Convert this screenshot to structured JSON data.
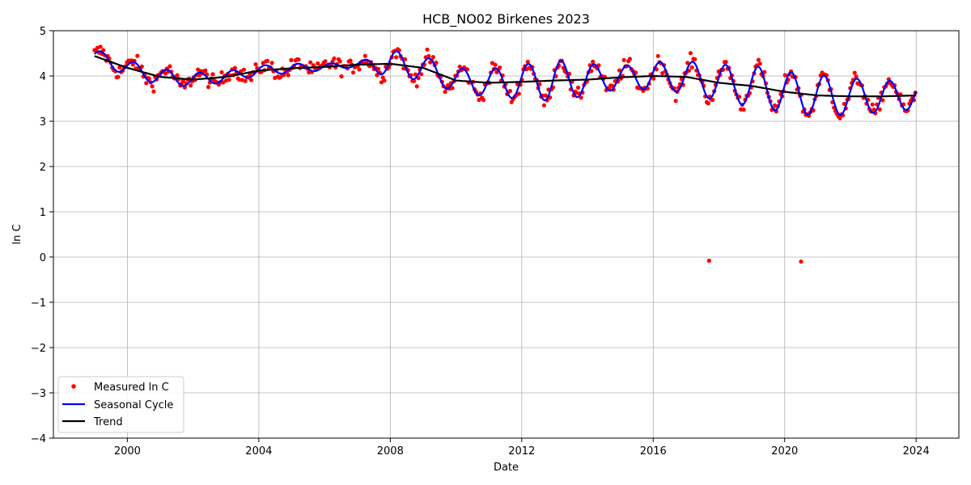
{
  "chart_data": {
    "type": "line",
    "title": "HCB_NO02 Birkenes 2023",
    "xlabel": "Date",
    "ylabel": "ln C",
    "xlim": [
      1997.75,
      2025.3
    ],
    "ylim": [
      -4,
      5
    ],
    "xticks": [
      2000,
      2004,
      2008,
      2012,
      2016,
      2020,
      2024
    ],
    "yticks": [
      -4,
      -3,
      -2,
      -1,
      0,
      1,
      2,
      3,
      4,
      5
    ],
    "grid": true,
    "legend_position": "bottom-left",
    "colors": {
      "measured": "#ff0000",
      "seasonal": "#0000ff",
      "trend": "#000000"
    },
    "series": [
      {
        "name": "Measured ln C",
        "style": "points",
        "color": "#ff0000",
        "outliers": [
          [
            2017.7,
            -0.08
          ],
          [
            2020.5,
            -0.1
          ]
        ]
      },
      {
        "name": "Seasonal Cycle",
        "style": "line",
        "color": "#0000ff"
      },
      {
        "name": "Trend",
        "style": "line",
        "color": "#000000",
        "points": [
          [
            1999.0,
            4.44
          ],
          [
            2000.0,
            4.18
          ],
          [
            2001.0,
            3.98
          ],
          [
            2002.0,
            3.92
          ],
          [
            2003.0,
            3.98
          ],
          [
            2004.0,
            4.12
          ],
          [
            2005.0,
            4.17
          ],
          [
            2006.0,
            4.2
          ],
          [
            2007.0,
            4.25
          ],
          [
            2008.0,
            4.27
          ],
          [
            2009.0,
            4.18
          ],
          [
            2010.0,
            3.9
          ],
          [
            2011.0,
            3.85
          ],
          [
            2012.0,
            3.87
          ],
          [
            2013.0,
            3.9
          ],
          [
            2014.0,
            3.92
          ],
          [
            2015.0,
            3.97
          ],
          [
            2016.0,
            4.0
          ],
          [
            2017.0,
            3.98
          ],
          [
            2018.0,
            3.85
          ],
          [
            2019.0,
            3.78
          ],
          [
            2020.0,
            3.65
          ],
          [
            2021.0,
            3.57
          ],
          [
            2022.0,
            3.55
          ],
          [
            2023.0,
            3.55
          ],
          [
            2024.0,
            3.57
          ]
        ]
      }
    ],
    "seasonal_amplitude": [
      [
        1999.0,
        0.15
      ],
      [
        2001.0,
        0.18
      ],
      [
        2003.0,
        0.12
      ],
      [
        2005.0,
        0.1
      ],
      [
        2007.0,
        0.05
      ],
      [
        2008.0,
        0.3
      ],
      [
        2009.5,
        0.25
      ],
      [
        2011.0,
        0.3
      ],
      [
        2013.0,
        0.45
      ],
      [
        2015.0,
        0.25
      ],
      [
        2017.0,
        0.35
      ],
      [
        2019.0,
        0.45
      ],
      [
        2021.0,
        0.45
      ],
      [
        2023.0,
        0.35
      ],
      [
        2024.0,
        0.3
      ]
    ]
  }
}
